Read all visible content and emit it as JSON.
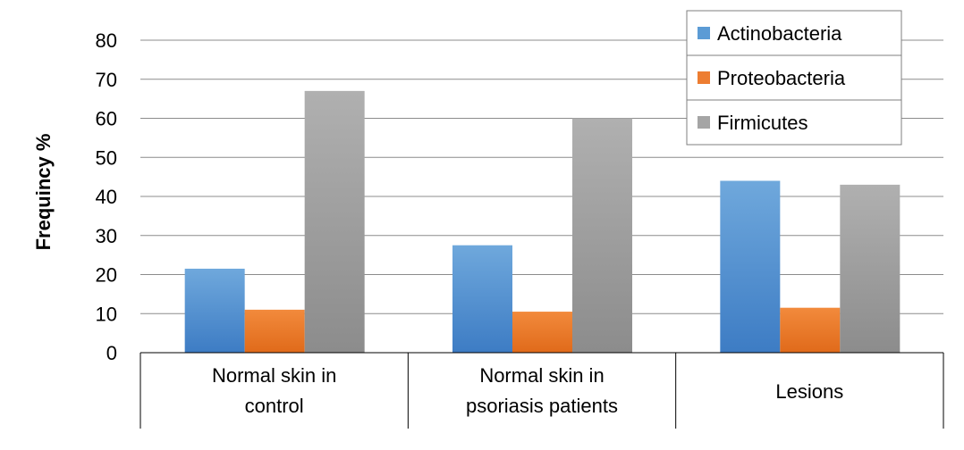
{
  "chart_data": {
    "type": "bar",
    "title": "",
    "xlabel": "",
    "ylabel": "Frequincy %",
    "ylim": [
      0,
      80
    ],
    "yticks": [
      0,
      10,
      20,
      30,
      40,
      50,
      60,
      70,
      80
    ],
    "grid": true,
    "legend_position": "top-right",
    "categories": [
      [
        "Normal skin in",
        "control"
      ],
      [
        "Normal skin in",
        "psoriasis patients"
      ],
      [
        "Lesions"
      ]
    ],
    "series": [
      {
        "name": "Actinobacteria",
        "color": "#5b9bd5",
        "values": [
          21.5,
          27.5,
          44
        ]
      },
      {
        "name": "Proteobacteria",
        "color": "#ed7d31",
        "values": [
          11,
          10.5,
          11.5
        ]
      },
      {
        "name": "Firmicutes",
        "color": "#a5a5a5",
        "values": [
          67,
          60,
          null
        ]
      }
    ],
    "lesions_firmicutes_value": 43
  }
}
